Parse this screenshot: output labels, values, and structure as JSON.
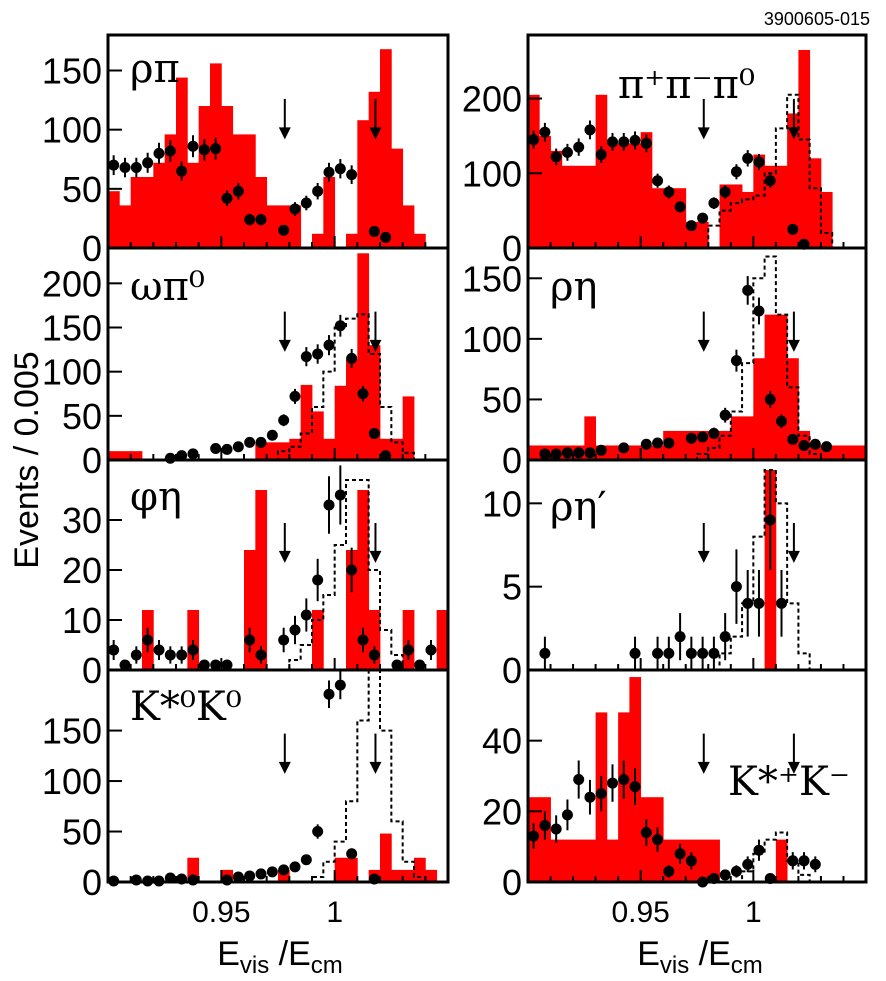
{
  "figure_id": "3900605-015",
  "ylabel": "Events / 0.005",
  "xlabel_left": {
    "main": "E",
    "sub1": "vis",
    "mid": " /E",
    "sub2": "cm"
  },
  "xlabel_right": {
    "main": "E",
    "sub1": "vis",
    "mid": " /E",
    "sub2": "cm"
  },
  "colors": {
    "hist": "#ff0000",
    "points": "#000000",
    "mc": "#000000"
  },
  "chart_data": [
    {
      "type": "bar",
      "name": "rho-pi",
      "label": "ρπ",
      "x_range": [
        0.9,
        1.05
      ],
      "ylim": [
        0,
        180
      ],
      "yticks": [
        0,
        50,
        100,
        150
      ],
      "xticks": [
        0.95,
        1.0
      ],
      "xticklabels": [
        "0.95",
        "1"
      ],
      "arrows": [
        0.978,
        1.018
      ],
      "hist": [
        48,
        36,
        60,
        60,
        72,
        96,
        144,
        72,
        120,
        156,
        120,
        96,
        96,
        60,
        36,
        36,
        36,
        0,
        12,
        60,
        0,
        12,
        108,
        132,
        168,
        84,
        36,
        12,
        0,
        0
      ],
      "mc": null,
      "points": [
        [
          0.9025,
          70
        ],
        [
          0.9075,
          68
        ],
        [
          0.9125,
          68
        ],
        [
          0.9175,
          72
        ],
        [
          0.9225,
          80
        ],
        [
          0.9275,
          82
        ],
        [
          0.9325,
          65
        ],
        [
          0.9375,
          86
        ],
        [
          0.9425,
          83
        ],
        [
          0.9475,
          84
        ],
        [
          0.9525,
          42
        ],
        [
          0.9575,
          48
        ],
        [
          0.9625,
          24
        ],
        [
          0.9675,
          24
        ],
        [
          0.9775,
          15
        ],
        [
          0.9825,
          33
        ],
        [
          0.9875,
          38
        ],
        [
          0.9925,
          48
        ],
        [
          0.9975,
          64
        ],
        [
          1.0025,
          67
        ],
        [
          1.0075,
          62
        ],
        [
          1.0175,
          14
        ],
        [
          1.0225,
          9
        ]
      ]
    },
    {
      "type": "bar",
      "name": "pipipi0",
      "label": "π⁺π⁻π⁰",
      "x_range": [
        0.9,
        1.05
      ],
      "ylim": [
        0,
        285
      ],
      "yticks": [
        0,
        100,
        200
      ],
      "xticks": [
        0.95,
        1.0
      ],
      "xticklabels": [
        "0.95",
        "1"
      ],
      "arrows": [
        0.978,
        1.018
      ],
      "hist": [
        205,
        150,
        130,
        110,
        110,
        110,
        205,
        140,
        140,
        140,
        155,
        80,
        80,
        80,
        35,
        35,
        0,
        85,
        85,
        75,
        125,
        110,
        110,
        180,
        265,
        120,
        75,
        0,
        0,
        0
      ],
      "mc": [
        0,
        0,
        0,
        0,
        0,
        0,
        0,
        0,
        0,
        0,
        0,
        0,
        0,
        0,
        0,
        0,
        30,
        50,
        60,
        65,
        70,
        100,
        160,
        205,
        145,
        80,
        20,
        0,
        0,
        0
      ],
      "points": [
        [
          0.9025,
          145
        ],
        [
          0.9075,
          155
        ],
        [
          0.9125,
          122
        ],
        [
          0.9175,
          128
        ],
        [
          0.9225,
          135
        ],
        [
          0.9275,
          158
        ],
        [
          0.9325,
          125
        ],
        [
          0.9375,
          142
        ],
        [
          0.9425,
          142
        ],
        [
          0.9475,
          144
        ],
        [
          0.9525,
          140
        ],
        [
          0.9575,
          90
        ],
        [
          0.9625,
          75
        ],
        [
          0.9675,
          55
        ],
        [
          0.9725,
          30
        ],
        [
          0.9775,
          40
        ],
        [
          0.9825,
          60
        ],
        [
          0.9875,
          75
        ],
        [
          0.9925,
          102
        ],
        [
          0.9975,
          120
        ],
        [
          1.0025,
          115
        ],
        [
          1.0075,
          90
        ],
        [
          1.0175,
          25
        ],
        [
          1.0225,
          5
        ]
      ]
    },
    {
      "type": "bar",
      "name": "omega-pi0",
      "label": "ωπ⁰",
      "x_range": [
        0.9,
        1.05
      ],
      "ylim": [
        0,
        240
      ],
      "yticks": [
        0,
        50,
        100,
        150,
        200
      ],
      "xticks": [
        0.95,
        1.0
      ],
      "xticklabels": [
        "0.95",
        "1"
      ],
      "arrows": [
        0.978,
        1.018
      ],
      "hist": [
        10,
        10,
        10,
        0,
        0,
        0,
        0,
        0,
        0,
        0,
        0,
        0,
        0,
        20,
        20,
        20,
        24,
        85,
        55,
        24,
        84,
        114,
        234,
        130,
        24,
        24,
        72,
        0,
        0,
        0
      ],
      "mc": [
        0,
        0,
        0,
        0,
        0,
        0,
        0,
        0,
        0,
        0,
        0,
        0,
        0,
        0,
        0,
        10,
        15,
        30,
        60,
        100,
        150,
        160,
        165,
        120,
        60,
        20,
        8,
        0,
        0,
        0
      ],
      "points": [
        [
          0.9275,
          2
        ],
        [
          0.9325,
          5
        ],
        [
          0.9375,
          7
        ],
        [
          0.9475,
          13
        ],
        [
          0.9525,
          12
        ],
        [
          0.9575,
          15
        ],
        [
          0.9625,
          20
        ],
        [
          0.9675,
          20
        ],
        [
          0.9725,
          28
        ],
        [
          0.9775,
          45
        ],
        [
          0.9825,
          72
        ],
        [
          0.9875,
          117
        ],
        [
          0.9925,
          120
        ],
        [
          0.9975,
          130
        ],
        [
          1.0025,
          152
        ],
        [
          1.0075,
          115
        ],
        [
          1.0125,
          75
        ],
        [
          1.0175,
          30
        ],
        [
          1.0225,
          5
        ]
      ]
    },
    {
      "type": "bar",
      "name": "rho-eta",
      "label": "ρη",
      "x_range": [
        0.9,
        1.05
      ],
      "ylim": [
        0,
        175
      ],
      "yticks": [
        0,
        50,
        100,
        150
      ],
      "xticks": [
        0.95,
        1.0
      ],
      "xticklabels": [
        "0.95",
        "1"
      ],
      "arrows": [
        0.978,
        1.018
      ],
      "hist": [
        12,
        12,
        12,
        12,
        12,
        36,
        12,
        12,
        12,
        12,
        12,
        12,
        24,
        24,
        24,
        24,
        24,
        24,
        36,
        36,
        84,
        120,
        120,
        84,
        24,
        12,
        12,
        12,
        12,
        12
      ],
      "mc": [
        0,
        0,
        0,
        0,
        0,
        0,
        0,
        0,
        0,
        0,
        0,
        0,
        0,
        0,
        0,
        5,
        10,
        20,
        40,
        80,
        150,
        168,
        120,
        60,
        20,
        5,
        0,
        0,
        0,
        0
      ],
      "points": [
        [
          0.9075,
          5
        ],
        [
          0.9125,
          5
        ],
        [
          0.9175,
          6
        ],
        [
          0.9225,
          6
        ],
        [
          0.9275,
          6
        ],
        [
          0.9325,
          8
        ],
        [
          0.9425,
          10
        ],
        [
          0.9525,
          13
        ],
        [
          0.9575,
          14
        ],
        [
          0.9625,
          14
        ],
        [
          0.9725,
          18
        ],
        [
          0.9775,
          19
        ],
        [
          0.9825,
          22
        ],
        [
          0.9875,
          37
        ],
        [
          0.9925,
          82
        ],
        [
          0.9975,
          140
        ],
        [
          1.0025,
          123
        ],
        [
          1.0075,
          50
        ],
        [
          1.0125,
          32
        ],
        [
          1.0175,
          17
        ],
        [
          1.0225,
          12
        ],
        [
          1.0275,
          13
        ],
        [
          1.0325,
          11
        ]
      ]
    },
    {
      "type": "bar",
      "name": "phi-eta",
      "label": "φη",
      "x_range": [
        0.9,
        1.05
      ],
      "ylim": [
        0,
        42
      ],
      "yticks": [
        0,
        10,
        20,
        30
      ],
      "xticks": [
        0.95,
        1.0
      ],
      "xticklabels": [
        "0.95",
        "1"
      ],
      "arrows": [
        0.978,
        1.018
      ],
      "hist": [
        0,
        0,
        0,
        12,
        0,
        0,
        0,
        12,
        0,
        0,
        0,
        0,
        24,
        36,
        0,
        0,
        0,
        0,
        12,
        0,
        0,
        24,
        36,
        12,
        0,
        0,
        12,
        0,
        0,
        12
      ],
      "mc": [
        0,
        0,
        0,
        0,
        0,
        0,
        0,
        0,
        0,
        0,
        0,
        0,
        0,
        0,
        0,
        0,
        2,
        5,
        10,
        15,
        25,
        38,
        38,
        20,
        8,
        3,
        0,
        0,
        0,
        0
      ],
      "points": [
        [
          0.9025,
          4
        ],
        [
          0.9075,
          1
        ],
        [
          0.9125,
          3
        ],
        [
          0.9175,
          6
        ],
        [
          0.9225,
          4
        ],
        [
          0.9275,
          3
        ],
        [
          0.9325,
          3
        ],
        [
          0.9375,
          4
        ],
        [
          0.9425,
          1
        ],
        [
          0.9475,
          1
        ],
        [
          0.9525,
          1
        ],
        [
          0.9625,
          6
        ],
        [
          0.9675,
          3
        ],
        [
          0.9775,
          6
        ],
        [
          0.9825,
          8
        ],
        [
          0.9875,
          11
        ],
        [
          0.9925,
          18
        ],
        [
          0.9975,
          33
        ],
        [
          1.0025,
          35
        ],
        [
          1.0075,
          20
        ],
        [
          1.0125,
          6
        ],
        [
          1.0175,
          3
        ],
        [
          1.0275,
          1
        ],
        [
          1.0325,
          4
        ],
        [
          1.0375,
          1
        ],
        [
          1.0425,
          4
        ]
      ]
    },
    {
      "type": "bar",
      "name": "rho-eta-prime",
      "label": "ρη′",
      "x_range": [
        0.9,
        1.05
      ],
      "ylim": [
        0,
        12.6
      ],
      "yticks": [
        0,
        5,
        10
      ],
      "xticks": [
        0.95,
        1.0
      ],
      "xticklabels": [
        "0.95",
        "1"
      ],
      "arrows": [
        0.978,
        1.018
      ],
      "hist": [
        0,
        0,
        0,
        0,
        0,
        0,
        0,
        0,
        0,
        0,
        0,
        0,
        0,
        0,
        0,
        0,
        0,
        0,
        0,
        0,
        0,
        12,
        0,
        0,
        0,
        0,
        0,
        0,
        0,
        0
      ],
      "mc": [
        0,
        0,
        0,
        0,
        0,
        0,
        0,
        0,
        0,
        0,
        0,
        0,
        0,
        0,
        0,
        0,
        0,
        1,
        2,
        4,
        8,
        12,
        10,
        4,
        1,
        0,
        0,
        0,
        0,
        0
      ],
      "points": [
        [
          0.9075,
          1
        ],
        [
          0.9475,
          1
        ],
        [
          0.9575,
          1
        ],
        [
          0.9625,
          1
        ],
        [
          0.9675,
          2
        ],
        [
          0.9725,
          1
        ],
        [
          0.9775,
          1
        ],
        [
          0.9825,
          1
        ],
        [
          0.9875,
          2
        ],
        [
          0.9925,
          5
        ],
        [
          0.9975,
          4
        ],
        [
          1.0025,
          4
        ],
        [
          1.0075,
          9
        ],
        [
          1.0125,
          4
        ]
      ]
    },
    {
      "type": "bar",
      "name": "kstar0-k0",
      "label": "K*⁰K⁰",
      "x_range": [
        0.9,
        1.05
      ],
      "ylim": [
        0,
        210
      ],
      "yticks": [
        0,
        50,
        100,
        150
      ],
      "xticks": [
        0.95,
        1.0
      ],
      "xticklabels": [
        "0.95",
        "1"
      ],
      "arrows": [
        0.978,
        1.018
      ],
      "hist": [
        0,
        0,
        0,
        0,
        0,
        0,
        0,
        24,
        0,
        0,
        12,
        0,
        0,
        0,
        0,
        12,
        0,
        0,
        0,
        0,
        24,
        24,
        0,
        12,
        48,
        12,
        12,
        24,
        12,
        0
      ],
      "mc": [
        0,
        0,
        0,
        0,
        0,
        0,
        0,
        0,
        0,
        0,
        0,
        0,
        0,
        0,
        0,
        0,
        0,
        0,
        5,
        20,
        40,
        80,
        160,
        210,
        150,
        60,
        20,
        5,
        0,
        0
      ],
      "points": [
        [
          0.9025,
          1
        ],
        [
          0.9125,
          2
        ],
        [
          0.9175,
          1
        ],
        [
          0.9225,
          1
        ],
        [
          0.9275,
          4
        ],
        [
          0.9325,
          3
        ],
        [
          0.9375,
          2
        ],
        [
          0.9525,
          2
        ],
        [
          0.9575,
          5
        ],
        [
          0.9625,
          6
        ],
        [
          0.9675,
          8
        ],
        [
          0.9725,
          10
        ],
        [
          0.9775,
          12
        ],
        [
          0.9825,
          15
        ],
        [
          0.9875,
          22
        ],
        [
          0.9925,
          50
        ],
        [
          0.9975,
          186
        ],
        [
          1.0025,
          195
        ],
        [
          1.0075,
          28
        ],
        [
          1.0175,
          3
        ]
      ]
    },
    {
      "type": "bar",
      "name": "kstarplus-kminus",
      "label": "K*⁺K⁻",
      "x_range": [
        0.9,
        1.05
      ],
      "ylim": [
        0,
        60
      ],
      "yticks": [
        0,
        20,
        40
      ],
      "xticks": [
        0.95,
        1.0
      ],
      "xticklabels": [
        "0.95",
        "1"
      ],
      "arrows": [
        0.978,
        1.018
      ],
      "hist": [
        24,
        24,
        12,
        12,
        12,
        12,
        48,
        12,
        48,
        58,
        24,
        24,
        12,
        12,
        12,
        12,
        12,
        0,
        0,
        0,
        0,
        0,
        12,
        0,
        0,
        0,
        0,
        0,
        0,
        0
      ],
      "mc": [
        0,
        0,
        0,
        0,
        0,
        0,
        0,
        0,
        0,
        0,
        0,
        0,
        0,
        0,
        0,
        0,
        0,
        0,
        0,
        3,
        8,
        12,
        14,
        6,
        2,
        0,
        0,
        0,
        0,
        0
      ],
      "points": [
        [
          0.9025,
          13
        ],
        [
          0.9075,
          16
        ],
        [
          0.9125,
          15
        ],
        [
          0.9175,
          19
        ],
        [
          0.9225,
          29
        ],
        [
          0.9275,
          24
        ],
        [
          0.9325,
          25
        ],
        [
          0.9375,
          28
        ],
        [
          0.9425,
          29
        ],
        [
          0.9475,
          27
        ],
        [
          0.9525,
          14
        ],
        [
          0.9575,
          12
        ],
        [
          0.9625,
          3
        ],
        [
          0.9675,
          8
        ],
        [
          0.9725,
          6
        ],
        [
          0.9775,
          0
        ],
        [
          0.9825,
          1
        ],
        [
          0.9875,
          2
        ],
        [
          0.9925,
          3
        ],
        [
          0.9975,
          5
        ],
        [
          1.0025,
          9
        ],
        [
          1.0075,
          1
        ],
        [
          1.0175,
          6
        ],
        [
          1.0225,
          6
        ],
        [
          1.0275,
          5
        ]
      ]
    }
  ]
}
